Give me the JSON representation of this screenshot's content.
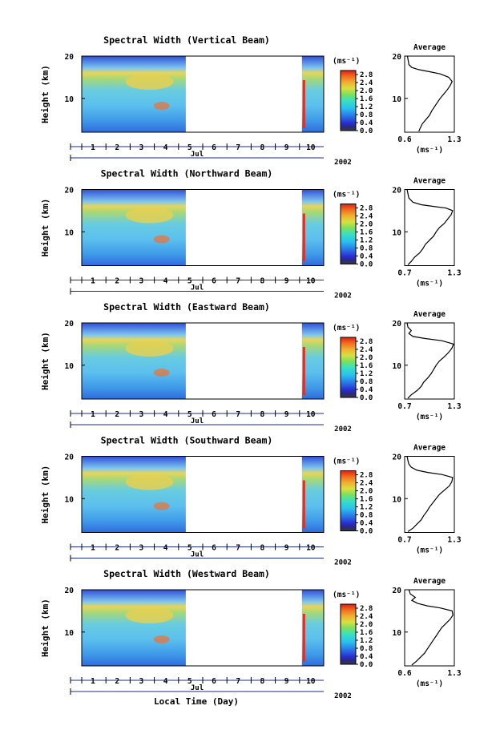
{
  "figure": {
    "footer_xlabel": "Local Time (Day)"
  },
  "chart_data": [
    {
      "type": "heatmap",
      "title": "Spectral Width (Vertical Beam)",
      "ylabel": "Height (km)",
      "ylim": [
        2,
        20
      ],
      "yticks": [
        "10",
        "20"
      ],
      "xtick_labels": [
        "1",
        "2",
        "3",
        "4",
        "5",
        "6",
        "7",
        "8",
        "9",
        "10"
      ],
      "month_label": "Jul",
      "year_label": "2002",
      "colorbar": {
        "unit": "(ms⁻¹)",
        "ticks": [
          "0.0",
          "0.4",
          "0.8",
          "1.2",
          "1.6",
          "2.0",
          "2.4",
          "2.8"
        ],
        "range": [
          0,
          3.0
        ]
      },
      "data_segments": [
        [
          0,
          4.3
        ],
        [
          9.1,
          10.0
        ]
      ],
      "profile": {
        "title": "Average",
        "xlabel": "(ms⁻¹)",
        "xticks": [
          "0.6",
          "1.3"
        ],
        "xlim": [
          0.6,
          1.3
        ],
        "ylim": [
          2,
          20
        ],
        "yticks": [
          "10",
          "20"
        ],
        "points": [
          [
            0.8,
            2.2
          ],
          [
            0.82,
            3
          ],
          [
            0.85,
            4
          ],
          [
            0.9,
            5
          ],
          [
            0.95,
            6
          ],
          [
            0.98,
            7
          ],
          [
            1.02,
            8
          ],
          [
            1.06,
            9
          ],
          [
            1.1,
            10
          ],
          [
            1.15,
            11
          ],
          [
            1.2,
            12
          ],
          [
            1.24,
            13
          ],
          [
            1.27,
            14
          ],
          [
            1.22,
            15
          ],
          [
            1.1,
            15.8
          ],
          [
            0.95,
            16.3
          ],
          [
            0.8,
            16.8
          ],
          [
            0.7,
            17.3
          ],
          [
            0.66,
            18
          ],
          [
            0.65,
            19
          ],
          [
            0.64,
            20
          ]
        ]
      }
    },
    {
      "type": "heatmap",
      "title": "Spectral Width (Northward Beam)",
      "ylabel": "Height (km)",
      "ylim": [
        2,
        20
      ],
      "yticks": [
        "10",
        "20"
      ],
      "xtick_labels": [
        "1",
        "2",
        "3",
        "4",
        "5",
        "6",
        "7",
        "8",
        "9",
        "10"
      ],
      "month_label": "Jul",
      "year_label": "2002",
      "colorbar": {
        "unit": "(ms⁻¹)",
        "ticks": [
          "0.0",
          "0.4",
          "0.8",
          "1.2",
          "1.6",
          "2.0",
          "2.4",
          "2.8"
        ],
        "range": [
          0,
          3.0
        ]
      },
      "data_segments": [
        [
          0,
          4.3
        ],
        [
          9.1,
          10.0
        ]
      ],
      "profile": {
        "title": "Average",
        "xlabel": "(ms⁻¹)",
        "xticks": [
          "0.7",
          "1.3"
        ],
        "xlim": [
          0.7,
          1.3
        ],
        "ylim": [
          2,
          20
        ],
        "yticks": [
          "10",
          "20"
        ],
        "points": [
          [
            0.74,
            2.2
          ],
          [
            0.78,
            3
          ],
          [
            0.82,
            4
          ],
          [
            0.88,
            5
          ],
          [
            0.92,
            6
          ],
          [
            0.95,
            7
          ],
          [
            1.0,
            8
          ],
          [
            1.05,
            9
          ],
          [
            1.08,
            10
          ],
          [
            1.12,
            11
          ],
          [
            1.18,
            12
          ],
          [
            1.22,
            13
          ],
          [
            1.26,
            14
          ],
          [
            1.28,
            15
          ],
          [
            1.2,
            15.6
          ],
          [
            1.05,
            16
          ],
          [
            0.9,
            16.4
          ],
          [
            0.8,
            17
          ],
          [
            0.75,
            18
          ],
          [
            0.74,
            19
          ],
          [
            0.73,
            20
          ]
        ]
      }
    },
    {
      "type": "heatmap",
      "title": "Spectral Width (Eastward Beam)",
      "ylabel": "Height (km)",
      "ylim": [
        2,
        20
      ],
      "yticks": [
        "10",
        "20"
      ],
      "xtick_labels": [
        "1",
        "2",
        "3",
        "4",
        "5",
        "6",
        "7",
        "8",
        "9",
        "10"
      ],
      "month_label": "Jul",
      "year_label": "2002",
      "colorbar": {
        "unit": "(ms⁻¹)",
        "ticks": [
          "0.0",
          "0.4",
          "0.8",
          "1.2",
          "1.6",
          "2.0",
          "2.4",
          "2.8"
        ],
        "range": [
          0,
          3.0
        ]
      },
      "data_segments": [
        [
          0,
          4.3
        ],
        [
          9.1,
          10.0
        ]
      ],
      "profile": {
        "title": "Average",
        "xlabel": "(ms⁻¹)",
        "xticks": [
          "0.7",
          "1.3"
        ],
        "xlim": [
          0.7,
          1.3
        ],
        "ylim": [
          2,
          20
        ],
        "yticks": [
          "10",
          "20"
        ],
        "points": [
          [
            0.74,
            2.2
          ],
          [
            0.78,
            3
          ],
          [
            0.85,
            4
          ],
          [
            0.9,
            5
          ],
          [
            0.93,
            6
          ],
          [
            0.98,
            7
          ],
          [
            1.02,
            8
          ],
          [
            1.05,
            9
          ],
          [
            1.08,
            10
          ],
          [
            1.12,
            11
          ],
          [
            1.18,
            12
          ],
          [
            1.23,
            13
          ],
          [
            1.27,
            14
          ],
          [
            1.29,
            15
          ],
          [
            1.15,
            15.8
          ],
          [
            0.95,
            16.3
          ],
          [
            0.8,
            16.8
          ],
          [
            0.75,
            17.5
          ],
          [
            0.78,
            18.2
          ],
          [
            0.74,
            19
          ],
          [
            0.73,
            20
          ]
        ]
      }
    },
    {
      "type": "heatmap",
      "title": "Spectral Width (Southward Beam)",
      "ylabel": "Height (km)",
      "ylim": [
        2,
        20
      ],
      "yticks": [
        "10",
        "20"
      ],
      "xtick_labels": [
        "1",
        "2",
        "3",
        "4",
        "5",
        "6",
        "7",
        "8",
        "9",
        "10"
      ],
      "month_label": "Jul",
      "year_label": "2002",
      "colorbar": {
        "unit": "(ms⁻¹)",
        "ticks": [
          "0.0",
          "0.4",
          "0.8",
          "1.2",
          "1.6",
          "2.0",
          "2.4",
          "2.8"
        ],
        "range": [
          0,
          3.0
        ]
      },
      "data_segments": [
        [
          0,
          4.3
        ],
        [
          9.1,
          10.0
        ]
      ],
      "profile": {
        "title": "Average",
        "xlabel": "(ms⁻¹)",
        "xticks": [
          "0.7",
          "1.3"
        ],
        "xlim": [
          0.7,
          1.3
        ],
        "ylim": [
          2,
          20
        ],
        "yticks": [
          "10",
          "20"
        ],
        "points": [
          [
            0.74,
            2.2
          ],
          [
            0.8,
            3
          ],
          [
            0.85,
            4
          ],
          [
            0.9,
            5
          ],
          [
            0.93,
            6
          ],
          [
            0.97,
            7
          ],
          [
            1.0,
            8
          ],
          [
            1.04,
            9
          ],
          [
            1.08,
            10
          ],
          [
            1.12,
            11
          ],
          [
            1.18,
            12
          ],
          [
            1.24,
            13
          ],
          [
            1.27,
            14
          ],
          [
            1.28,
            15
          ],
          [
            1.15,
            15.7
          ],
          [
            0.98,
            16.2
          ],
          [
            0.85,
            16.7
          ],
          [
            0.78,
            17.4
          ],
          [
            0.75,
            18.2
          ],
          [
            0.74,
            19
          ],
          [
            0.73,
            20
          ]
        ]
      }
    },
    {
      "type": "heatmap",
      "title": "Spectral Width (Westward Beam)",
      "ylabel": "Height (km)",
      "ylim": [
        2,
        20
      ],
      "yticks": [
        "10",
        "20"
      ],
      "xtick_labels": [
        "1",
        "2",
        "3",
        "4",
        "5",
        "6",
        "7",
        "8",
        "9",
        "10"
      ],
      "month_label": "Jul",
      "year_label": "2002",
      "colorbar": {
        "unit": "(ms⁻¹)",
        "ticks": [
          "0.0",
          "0.4",
          "0.8",
          "1.2",
          "1.6",
          "2.0",
          "2.4",
          "2.8"
        ],
        "range": [
          0,
          3.0
        ]
      },
      "data_segments": [
        [
          0,
          4.3
        ],
        [
          9.1,
          10.0
        ]
      ],
      "profile": {
        "title": "Average",
        "xlabel": "(ms⁻¹)",
        "xticks": [
          "0.6",
          "1.3"
        ],
        "xlim": [
          0.6,
          1.3
        ],
        "ylim": [
          2,
          20
        ],
        "yticks": [
          "10",
          "20"
        ],
        "points": [
          [
            0.7,
            2.2
          ],
          [
            0.76,
            3
          ],
          [
            0.82,
            4
          ],
          [
            0.88,
            5
          ],
          [
            0.92,
            6
          ],
          [
            0.96,
            7
          ],
          [
            1.0,
            8
          ],
          [
            1.04,
            9
          ],
          [
            1.08,
            10
          ],
          [
            1.12,
            11
          ],
          [
            1.18,
            12
          ],
          [
            1.24,
            13
          ],
          [
            1.28,
            14
          ],
          [
            1.27,
            15
          ],
          [
            1.1,
            15.7
          ],
          [
            0.92,
            16.2
          ],
          [
            0.78,
            16.8
          ],
          [
            0.7,
            17.5
          ],
          [
            0.75,
            18.2
          ],
          [
            0.68,
            19
          ],
          [
            0.66,
            20
          ]
        ]
      }
    }
  ]
}
